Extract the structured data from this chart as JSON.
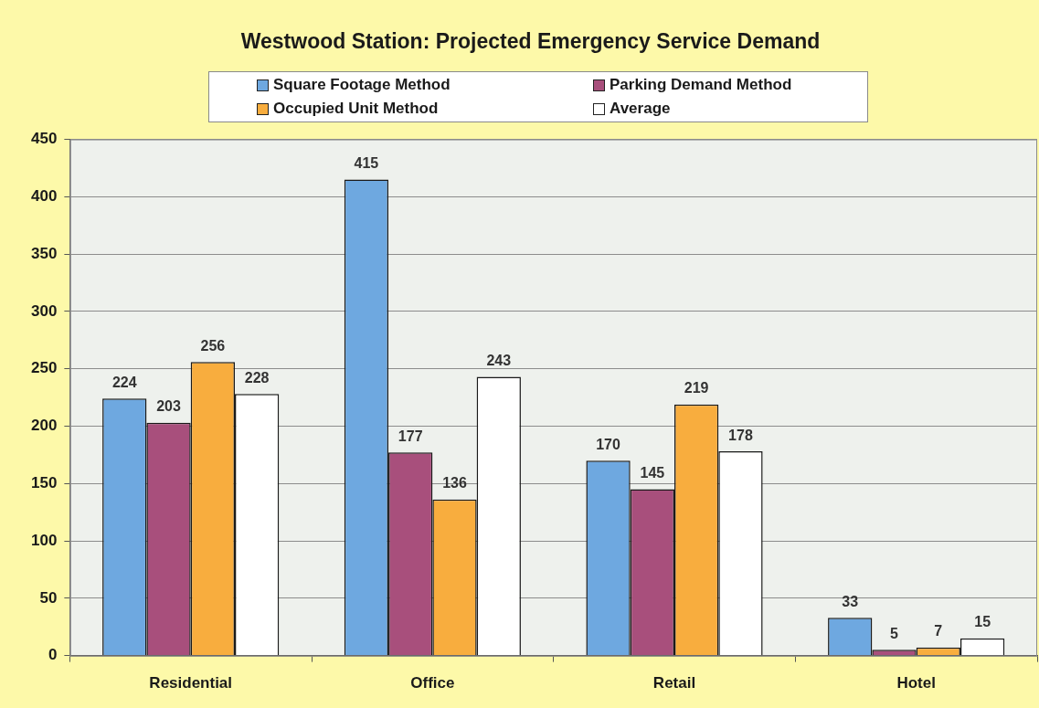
{
  "chart_data": {
    "type": "bar",
    "title": "Westwood Station: Projected Emergency Service Demand",
    "categories": [
      "Residential",
      "Office",
      "Retail",
      "Hotel"
    ],
    "series": [
      {
        "name": "Square Footage Method",
        "color": "#6ea8e0",
        "values": [
          224,
          415,
          170,
          33
        ]
      },
      {
        "name": "Parking Demand Method",
        "color": "#a84f7c",
        "values": [
          203,
          177,
          145,
          5
        ]
      },
      {
        "name": "Occupied Unit Method",
        "color": "#f8ad3e",
        "values": [
          256,
          136,
          219,
          7
        ]
      },
      {
        "name": "Average",
        "color": "#ffffff",
        "values": [
          228,
          243,
          178,
          15
        ]
      }
    ],
    "ylim": [
      0,
      450
    ],
    "yticks": [
      0,
      50,
      100,
      150,
      200,
      250,
      300,
      350,
      400,
      450
    ],
    "grid": "y",
    "legend": "top",
    "data_labels": true
  }
}
